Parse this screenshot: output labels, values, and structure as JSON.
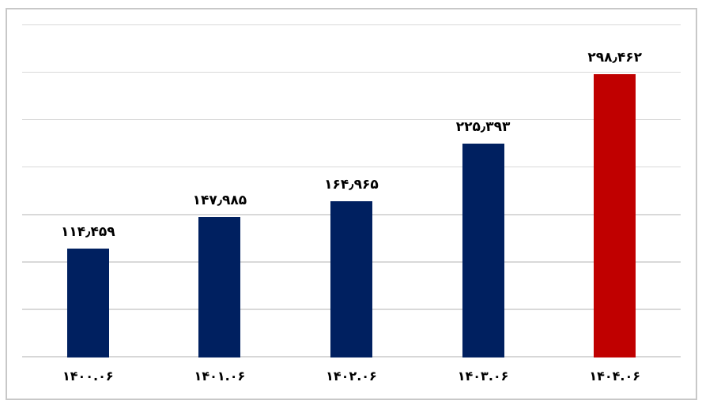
{
  "chart_data": {
    "type": "bar",
    "title": "",
    "xlabel": "",
    "ylabel": "",
    "categories": [
      "1400.06",
      "1401.06",
      "1402.06",
      "1403.06",
      "1404.06"
    ],
    "categories_fa": [
      "۱۴۰۰.۰۶",
      "۱۴۰۱.۰۶",
      "۱۴۰۲.۰۶",
      "۱۴۰۳.۰۶",
      "۱۴۰۴.۰۶"
    ],
    "values": [
      114459,
      147985,
      164965,
      225393,
      298462
    ],
    "data_labels_fa": [
      "۱۱۴٫۴۵۹",
      "۱۴۷٫۹۸۵",
      "۱۶۴٫۹۶۵",
      "۲۲۵٫۳۹۳",
      "۲۹۸٫۴۶۲"
    ],
    "ylim": [
      0,
      350000
    ],
    "grid_step": 50000,
    "grid": true,
    "legend": false,
    "y_axis_labels_visible": false,
    "highlight_index": 4,
    "colors": {
      "bar": "#002060",
      "highlight_bar": "#c00000",
      "gridline": "#d9d9d9",
      "frame_border": "#c8c8c8",
      "label_text": "#000000",
      "background": "#ffffff"
    }
  }
}
